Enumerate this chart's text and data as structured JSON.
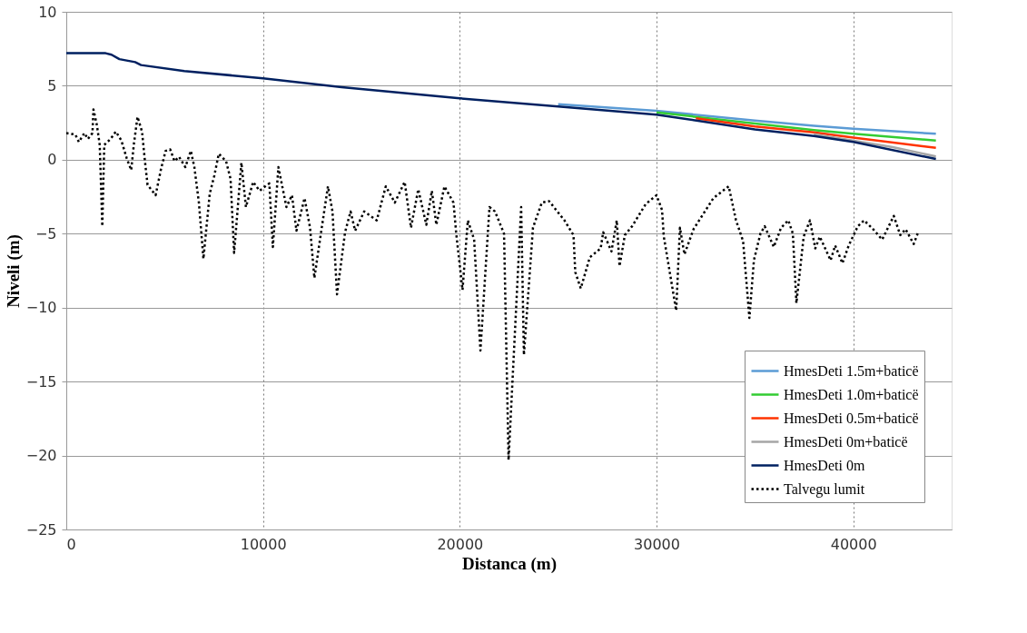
{
  "chart_data": {
    "type": "line",
    "xlabel": "Distanca (m)",
    "ylabel": "Niveli  (m)",
    "xlim": [
      0,
      45000
    ],
    "xticks": [
      0,
      10000,
      20000,
      30000,
      40000
    ],
    "ylim": [
      -25,
      10
    ],
    "yticks": [
      -25,
      -20,
      -15,
      -10,
      -5,
      0,
      5,
      10
    ],
    "grid": true,
    "legend": "bottom right",
    "marker": "none",
    "series": [
      {
        "name": "HmesDeti 1.5m+baticë",
        "color": "#5b9bd5",
        "line_style": "solid",
        "x": [
          25000,
          30000,
          35000,
          38000,
          40000,
          44200
        ],
        "values": [
          3.75,
          3.3,
          2.65,
          2.3,
          2.1,
          1.75
        ]
      },
      {
        "name": "HmesDeti 1.0m+baticë",
        "color": "#33cc33",
        "line_style": "solid",
        "x": [
          30000,
          35000,
          38000,
          40000,
          44200
        ],
        "values": [
          3.2,
          2.45,
          2.0,
          1.75,
          1.3
        ]
      },
      {
        "name": "HmesDeti 0.5m+baticë",
        "color": "#ff3300",
        "line_style": "solid",
        "x": [
          32000,
          35000,
          38000,
          40000,
          44200
        ],
        "values": [
          2.8,
          2.25,
          1.85,
          1.5,
          0.8
        ]
      },
      {
        "name": "HmesDeti 0m+baticë",
        "color": "#a6a6a6",
        "line_style": "solid",
        "x": [
          38000,
          42000,
          44200
        ],
        "values": [
          1.72,
          0.85,
          0.22
        ]
      },
      {
        "name": "HmesDeti 0m",
        "color": "#002060",
        "line_style": "solid",
        "x": [
          0,
          2000,
          2300,
          2700,
          3500,
          3800,
          6000,
          10000,
          14000,
          20000,
          25000,
          30000,
          35000,
          38000,
          40000,
          44200
        ],
        "values": [
          7.2,
          7.2,
          7.1,
          6.8,
          6.6,
          6.4,
          6.0,
          5.5,
          4.9,
          4.15,
          3.6,
          3.05,
          2.05,
          1.6,
          1.2,
          0.05
        ]
      },
      {
        "name": "Talvegu lumit",
        "color": "#000000",
        "line_style": "dotted",
        "x": [
          0,
          460,
          640,
          920,
          1100,
          1330,
          1380,
          1560,
          1700,
          1830,
          1930,
          2250,
          2520,
          2800,
          3070,
          3300,
          3440,
          3620,
          3850,
          3990,
          4130,
          4540,
          4820,
          5050,
          5280,
          5500,
          5730,
          6050,
          6330,
          6510,
          6740,
          6970,
          7290,
          7520,
          7750,
          8120,
          8350,
          8530,
          8900,
          9130,
          9500,
          9820,
          10320,
          10500,
          10780,
          11190,
          11470,
          11700,
          12110,
          12390,
          12610,
          12940,
          13300,
          13530,
          13760,
          14170,
          14450,
          14680,
          15140,
          15780,
          16240,
          16700,
          17200,
          17520,
          17890,
          18300,
          18580,
          18810,
          19220,
          19680,
          19820,
          20140,
          20410,
          20730,
          21050,
          21510,
          21790,
          22250,
          22480,
          23120,
          23260,
          23720,
          24170,
          24540,
          25320,
          25780,
          25870,
          26150,
          26610,
          27160,
          27290,
          27710,
          27980,
          28120,
          28390,
          28760,
          29450,
          30000,
          30280,
          30370,
          31000,
          31190,
          31420,
          31880,
          32890,
          33670,
          34040,
          34400,
          34720,
          34950,
          35280,
          35500,
          35960,
          36330,
          36700,
          36930,
          37110,
          37480,
          37800,
          38070,
          38300,
          38850,
          39080,
          39450,
          39770,
          40230,
          40550,
          41010,
          41470,
          42060,
          42390,
          42660,
          43070,
          43300
        ],
        "values": [
          1.8,
          1.7,
          1.2,
          1.8,
          1.4,
          1.8,
          3.4,
          2.3,
          1.0,
          -4.5,
          1.0,
          1.4,
          1.9,
          1.3,
          0.1,
          -0.7,
          1.1,
          2.9,
          1.9,
          0.0,
          -1.7,
          -2.4,
          -0.6,
          0.6,
          0.7,
          -0.1,
          0.2,
          -0.5,
          0.6,
          -0.5,
          -2.9,
          -6.7,
          -2.3,
          -1.1,
          0.4,
          -0.1,
          -1.3,
          -6.3,
          -0.2,
          -3.2,
          -1.5,
          -2.1,
          -1.6,
          -5.9,
          -0.5,
          -3.2,
          -2.4,
          -4.8,
          -2.6,
          -4.6,
          -8.0,
          -5.0,
          -1.8,
          -3.5,
          -9.1,
          -4.9,
          -3.5,
          -4.8,
          -3.5,
          -4.1,
          -1.8,
          -2.9,
          -1.5,
          -4.6,
          -2.0,
          -4.4,
          -2.1,
          -4.4,
          -1.8,
          -2.9,
          -5.0,
          -8.8,
          -4.1,
          -5.4,
          -12.9,
          -3.2,
          -3.5,
          -5.0,
          -20.3,
          -3.2,
          -13.2,
          -4.6,
          -2.9,
          -2.8,
          -4.1,
          -5.1,
          -7.6,
          -8.7,
          -6.6,
          -6.0,
          -4.9,
          -6.2,
          -4.1,
          -7.2,
          -5.1,
          -4.5,
          -3.0,
          -2.4,
          -3.4,
          -5.2,
          -10.2,
          -4.6,
          -6.4,
          -4.7,
          -2.6,
          -1.8,
          -4.1,
          -5.5,
          -10.7,
          -6.8,
          -5.0,
          -4.5,
          -5.9,
          -4.6,
          -4.1,
          -5.0,
          -9.7,
          -5.2,
          -4.1,
          -6.0,
          -5.2,
          -6.8,
          -5.8,
          -7.0,
          -5.8,
          -4.5,
          -4.1,
          -4.7,
          -5.4,
          -3.8,
          -5.1,
          -4.7,
          -5.7,
          -4.9
        ]
      }
    ]
  }
}
